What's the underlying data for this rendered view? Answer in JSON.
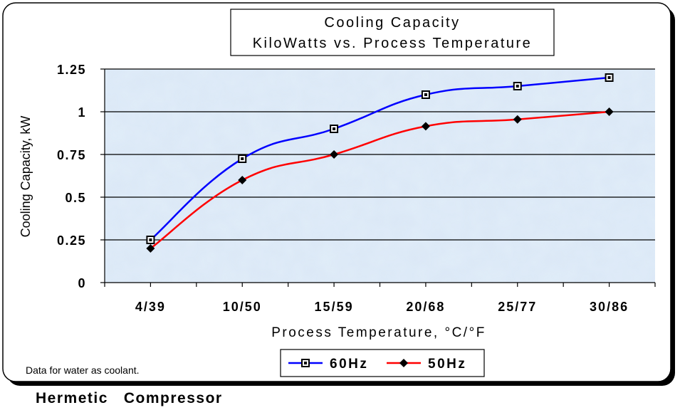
{
  "chart_data": {
    "type": "line",
    "title_line1": "Cooling Capacity",
    "title_line2": "KiloWatts vs. Process Temperature",
    "xlabel": "Process Temperature, °C/°F",
    "ylabel": "Cooling Capacity, kW",
    "categories": [
      "4/39",
      "10/50",
      "15/59",
      "20/68",
      "25/77",
      "30/86"
    ],
    "y_ticks": [
      "0",
      "0.25",
      "0.5",
      "0.75",
      "1",
      "1.25"
    ],
    "ylim": [
      0,
      1.25
    ],
    "grid": true,
    "legend_position": "bottom-center",
    "series": [
      {
        "name": "60Hz",
        "values": [
          0.25,
          0.725,
          0.9,
          1.1,
          1.15,
          1.2
        ],
        "color": "#0000ff",
        "marker": "square"
      },
      {
        "name": "50Hz",
        "values": [
          0.2,
          0.6,
          0.75,
          0.915,
          0.955,
          1.0
        ],
        "color": "#ff0000",
        "marker": "diamond"
      }
    ]
  },
  "footnote": "Data for water as coolant.",
  "caption": "Hermetic   Compressor"
}
